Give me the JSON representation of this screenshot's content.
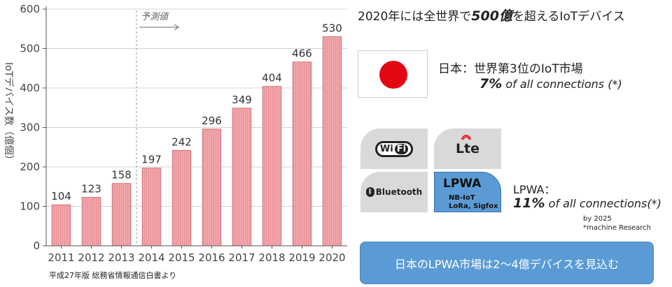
{
  "chart_data": {
    "type": "bar",
    "title": "",
    "xlabel": "",
    "ylabel": "IoTデバイス数（億個）",
    "categories": [
      "2011",
      "2012",
      "2013",
      "2014",
      "2015",
      "2016",
      "2017",
      "2018",
      "2019",
      "2020"
    ],
    "values": [
      104,
      123,
      158,
      197,
      242,
      296,
      349,
      404,
      466,
      530
    ],
    "ylim": [
      0,
      600
    ],
    "yticks": [
      0,
      100,
      200,
      300,
      400,
      500,
      600
    ],
    "grid": true,
    "bar_color": "#f2a7ac",
    "annotations": {
      "forecast_label": "予測値"
    }
  },
  "source_note": "平成27年版 総務省情報通信白書より",
  "headline": {
    "prefix": "2020年には全世界で",
    "bold": "500億",
    "suffix": "を超えるIoTデバイス"
  },
  "japan": {
    "label": "日本：世界第3位のIoT市場",
    "stat_pct": "7%",
    "stat_text": " of all connections (*)"
  },
  "badges": {
    "wifi": {
      "left": "Wi",
      "right": "Fi"
    },
    "lte": "Lte",
    "bluetooth": "Bluetooth",
    "lpwa": {
      "title": "LPWA",
      "line1": "NB-IoT",
      "line2": "LoRa, Sigfox"
    }
  },
  "lpwa": {
    "label": "LPWA：",
    "stat_pct": "11%",
    "stat_text": " of all connections(*)"
  },
  "note": {
    "line1": "by 2025",
    "line2": "*machine Research"
  },
  "callout": "日本のLPWA市場は2～4億デバイスを見込む",
  "colors": {
    "accent_blue": "#5b9bd5",
    "flag_red": "#e30613",
    "bar_stroke": "#c7656d"
  }
}
